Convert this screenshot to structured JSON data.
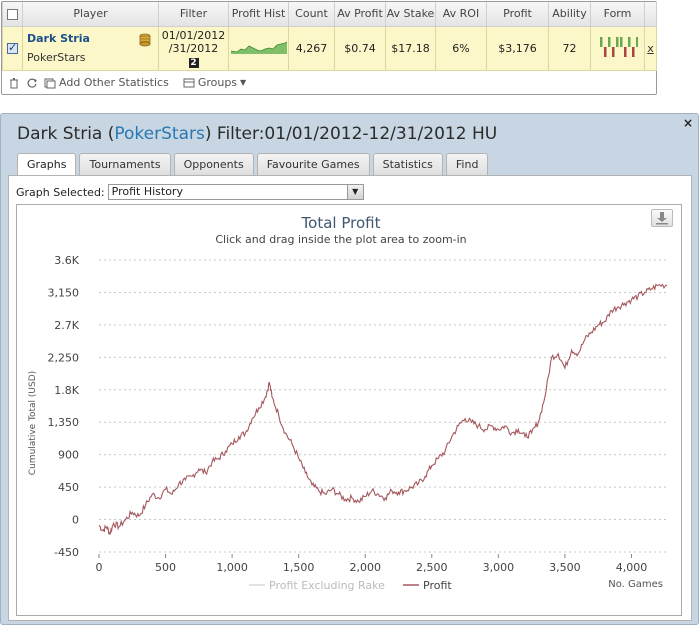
{
  "stats": {
    "headers": [
      "Player",
      "Filter",
      "Profit Hist",
      "Count",
      "Av Profit",
      "Av Stake",
      "Av ROI",
      "Profit",
      "Ability",
      "Form"
    ],
    "row": {
      "player_name": "Dark Stria",
      "site": "PokerStars",
      "filter_line1": "01/01/2012",
      "filter_line2": "/31/2012",
      "filter_badge": "2",
      "count": "4,267",
      "av_profit": "$0.74",
      "av_stake": "$17.18",
      "av_roi": "6%",
      "profit": "$3,176",
      "ability": "72",
      "remove": "x",
      "form": [
        1,
        -1,
        1,
        -1,
        1,
        1,
        -1,
        1,
        -1,
        1
      ]
    },
    "toolbar": {
      "add_stats": "Add Other Statistics",
      "groups": "Groups"
    }
  },
  "window": {
    "title_player": "Dark Stria",
    "title_site": "PokerStars",
    "title_filter": "Filter:01/01/2012-12/31/2012 HU",
    "close": "×",
    "tabs": [
      "Graphs",
      "Tournaments",
      "Opponents",
      "Favourite Games",
      "Statistics",
      "Find"
    ],
    "active_tab": "Graphs",
    "graph_select_label": "Graph Selected:",
    "graph_select_value": "Profit History"
  },
  "colors": {
    "profit_line": "#a5585d",
    "excl_rake_line": "#d8d8d8",
    "form_win": "#6aa84f",
    "form_loss": "#a94442"
  },
  "chart_data": {
    "type": "line",
    "title": "Total Profit",
    "subtitle": "Click and drag inside the plot area to zoom-in",
    "xlabel": "No. Games",
    "ylabel": "Cumulative Total (USD)",
    "xlim": [
      0,
      4267
    ],
    "ylim": [
      -450,
      3600
    ],
    "x_ticks": [
      "0",
      "500",
      "1,000",
      "1,500",
      "2,000",
      "2,500",
      "3,000",
      "3,500",
      "4,000"
    ],
    "x_tick_values": [
      0,
      500,
      1000,
      1500,
      2000,
      2500,
      3000,
      3500,
      4000
    ],
    "y_ticks": [
      "-450",
      "0",
      "450",
      "900",
      "1,350",
      "1.8K",
      "2,250",
      "2.7K",
      "3,150",
      "3.6K"
    ],
    "y_tick_values": [
      -450,
      0,
      450,
      900,
      1350,
      1800,
      2250,
      2700,
      3150,
      3600
    ],
    "grid": true,
    "legend_position": "bottom",
    "series": [
      {
        "name": "Profit Excluding Rake",
        "x": [],
        "values": []
      },
      {
        "name": "Profit",
        "x": [
          0,
          30,
          60,
          80,
          110,
          150,
          200,
          250,
          300,
          350,
          400,
          450,
          500,
          550,
          600,
          650,
          700,
          750,
          800,
          850,
          900,
          950,
          1000,
          1050,
          1100,
          1150,
          1200,
          1250,
          1280,
          1300,
          1350,
          1400,
          1450,
          1500,
          1550,
          1600,
          1650,
          1700,
          1750,
          1800,
          1850,
          1900,
          1950,
          2000,
          2050,
          2100,
          2150,
          2200,
          2250,
          2300,
          2350,
          2400,
          2450,
          2500,
          2550,
          2600,
          2650,
          2700,
          2750,
          2800,
          2850,
          2900,
          2950,
          3000,
          3050,
          3100,
          3150,
          3200,
          3250,
          3300,
          3350,
          3400,
          3450,
          3500,
          3550,
          3600,
          3650,
          3700,
          3750,
          3800,
          3850,
          3900,
          3950,
          4000,
          4050,
          4100,
          4150,
          4200,
          4267
        ],
        "values": [
          -80,
          -150,
          -100,
          -200,
          -50,
          -100,
          0,
          100,
          50,
          200,
          350,
          300,
          420,
          350,
          500,
          550,
          600,
          700,
          650,
          800,
          850,
          950,
          1050,
          1150,
          1200,
          1400,
          1550,
          1700,
          1900,
          1700,
          1450,
          1200,
          1050,
          850,
          650,
          480,
          400,
          350,
          420,
          350,
          280,
          300,
          250,
          320,
          400,
          350,
          300,
          400,
          380,
          400,
          450,
          500,
          600,
          750,
          850,
          950,
          1150,
          1300,
          1400,
          1350,
          1300,
          1250,
          1300,
          1250,
          1300,
          1200,
          1250,
          1150,
          1200,
          1350,
          1700,
          2250,
          2300,
          2100,
          2350,
          2300,
          2500,
          2600,
          2700,
          2750,
          2900,
          2950,
          3000,
          3050,
          3100,
          3150,
          3200,
          3250,
          3250
        ]
      }
    ]
  }
}
